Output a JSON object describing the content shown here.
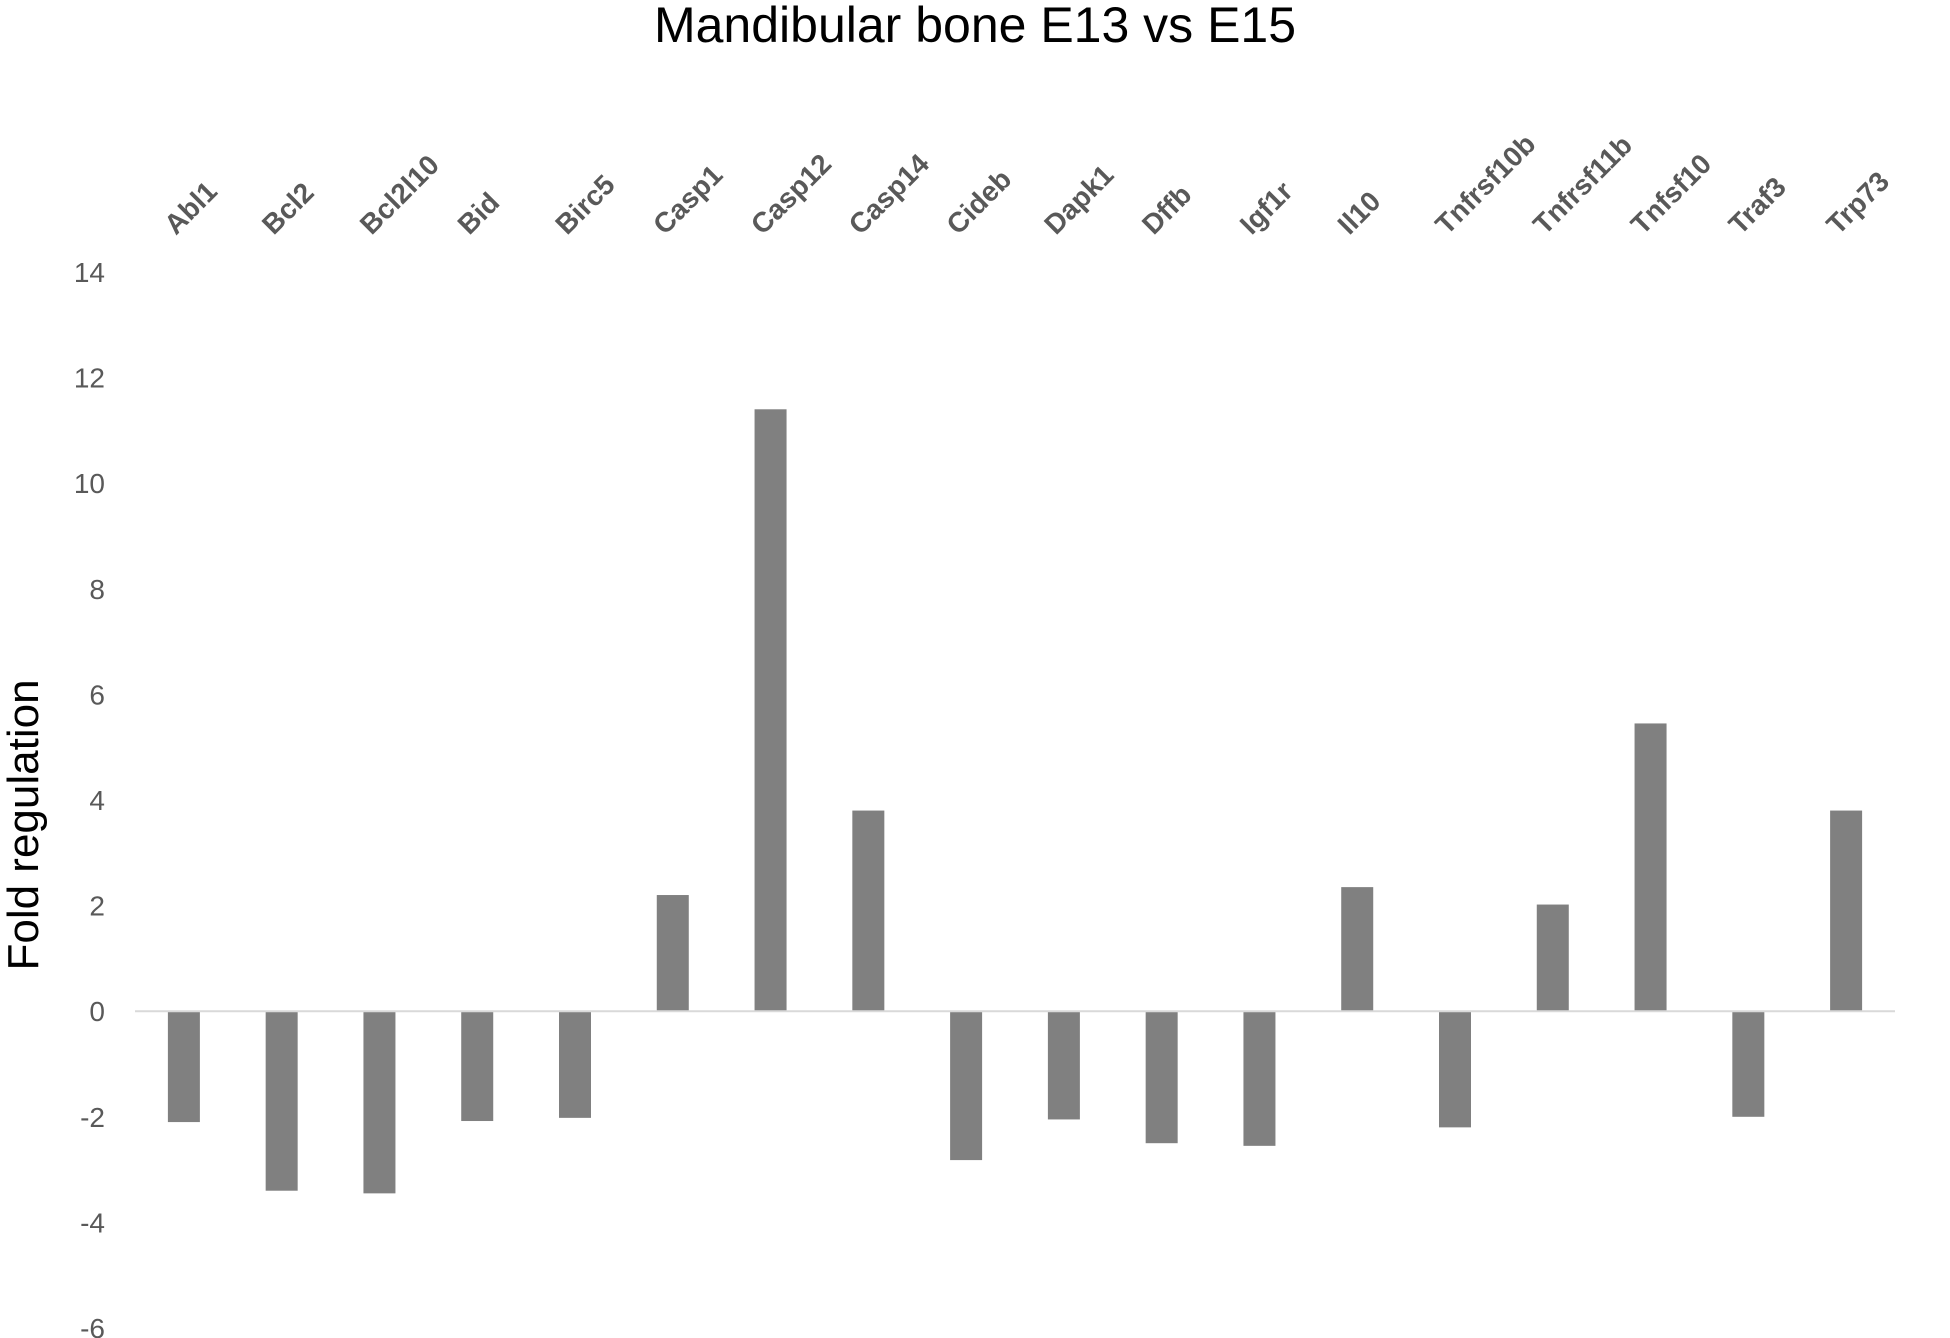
{
  "chart_data": {
    "type": "bar",
    "title": "Mandibular bone E13 vs E15",
    "xlabel": "",
    "ylabel": "Fold regulation",
    "ylim": [
      -6,
      14
    ],
    "yticks": [
      14,
      12,
      10,
      8,
      6,
      4,
      2,
      0,
      -2,
      -4,
      -6
    ],
    "categories": [
      "Abl1",
      "Bcl2",
      "Bcl2l10",
      "Bid",
      "Birc5",
      "Casp1",
      "Casp12",
      "Casp14",
      "Cideb",
      "Dapk1",
      "Dffb",
      "Igf1r",
      "Il10",
      "Tnfrsf10b",
      "Tnfrsf11b",
      "Tnfsf10",
      "Traf3",
      "Trp73"
    ],
    "values": [
      -2.1,
      -3.4,
      -3.45,
      -2.08,
      -2.02,
      2.2,
      11.4,
      3.8,
      -2.82,
      -2.05,
      -2.5,
      -2.55,
      2.35,
      -2.2,
      2.02,
      5.45,
      -2.0,
      3.8
    ],
    "bar_color": "#808080",
    "grid": false,
    "legend": "none"
  }
}
